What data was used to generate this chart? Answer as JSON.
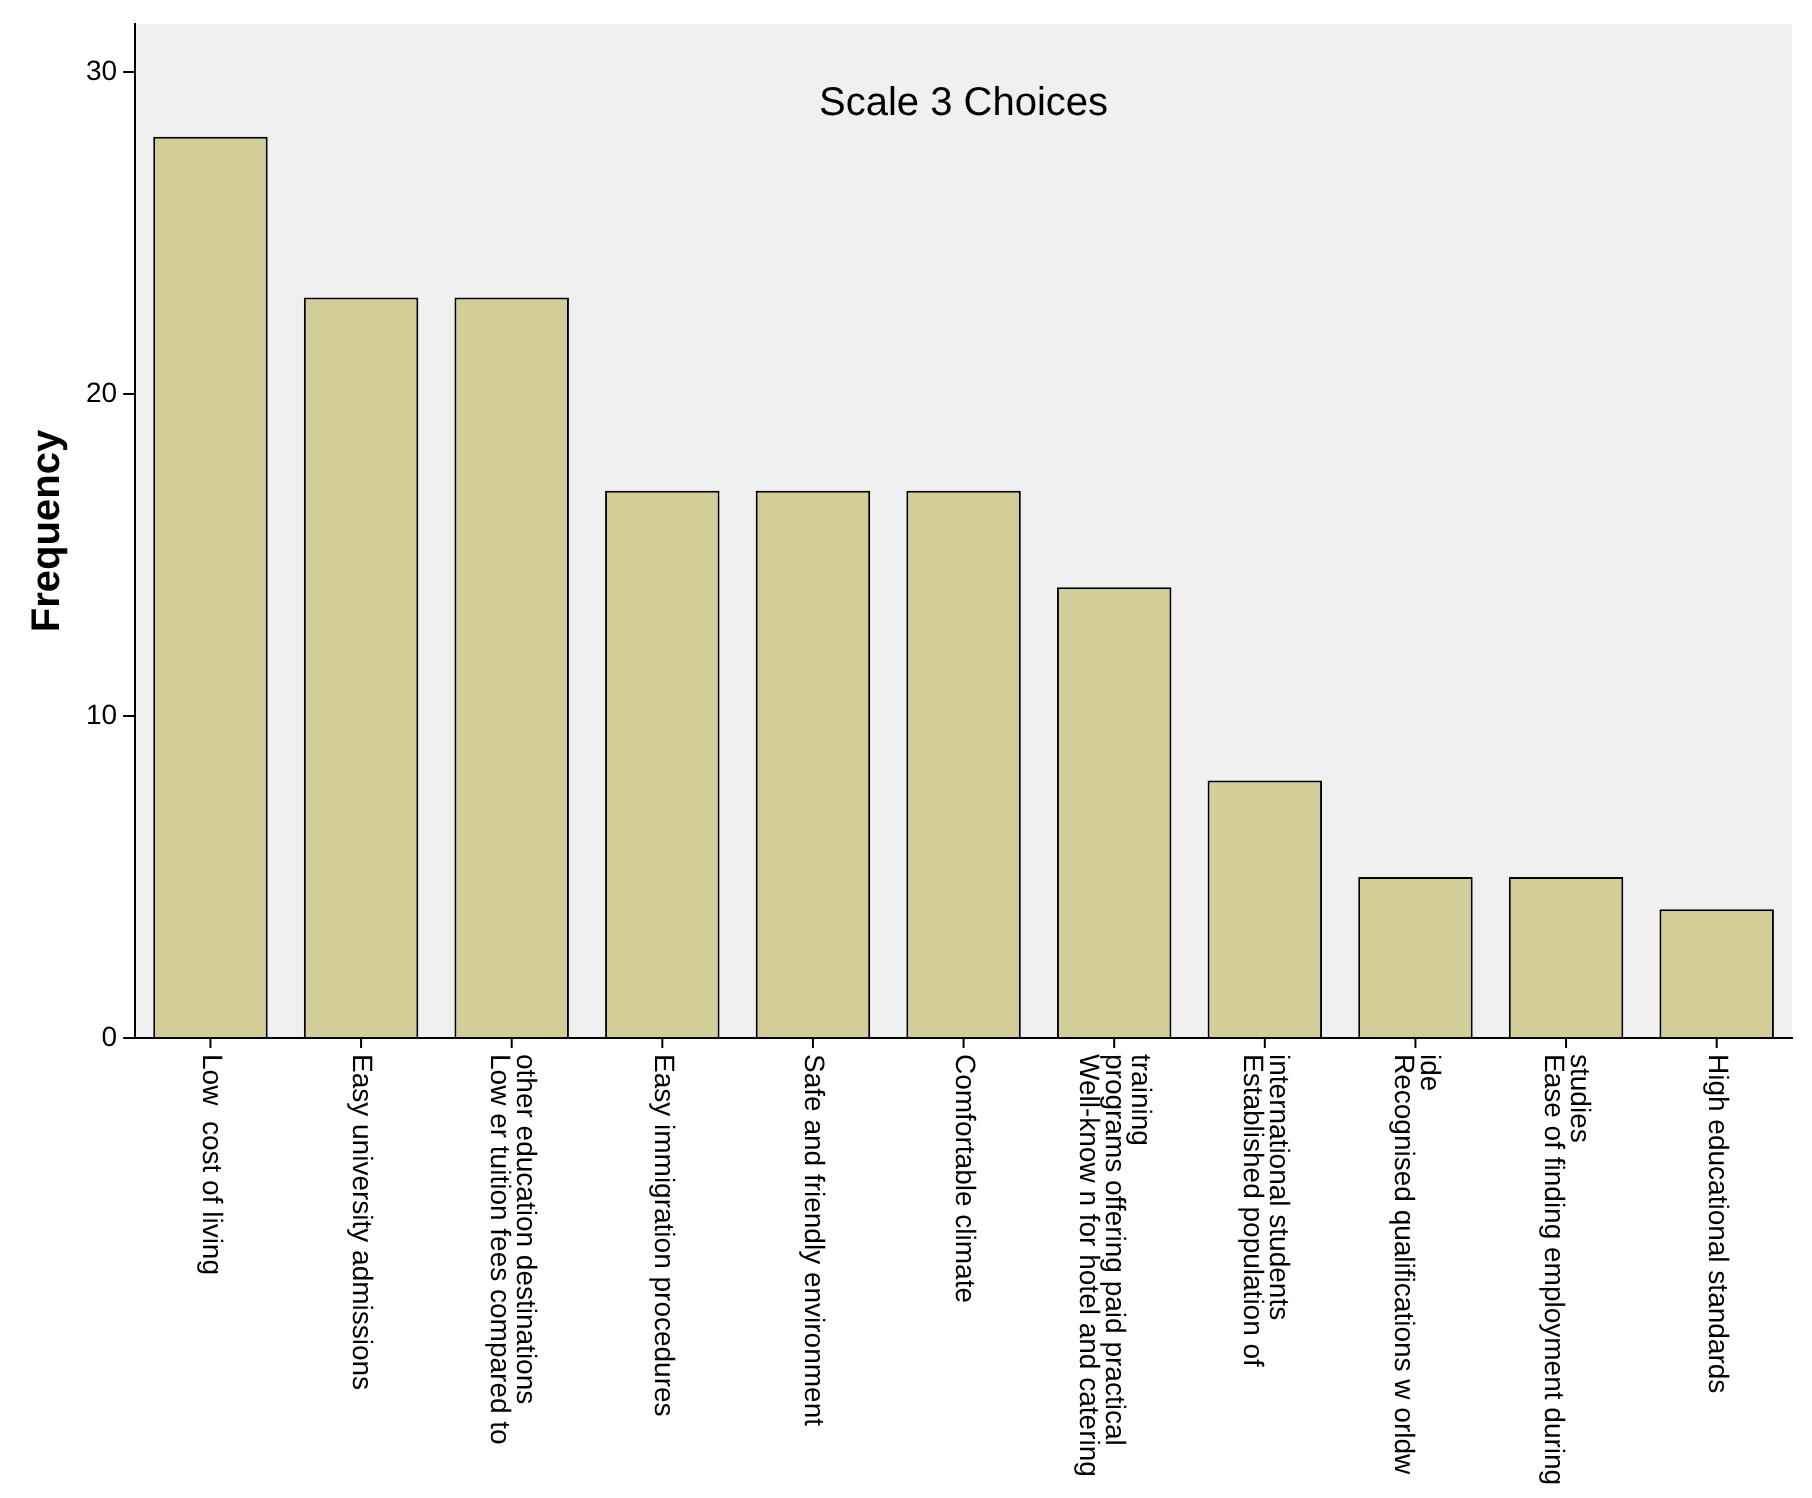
{
  "chart_data": {
    "type": "bar",
    "title": "Scale 3 Choices",
    "ylabel": "Frequency",
    "categories": [
      "Low  cost of living",
      "Easy university admissions",
      "Low er tuition fees compared to other education destinations",
      "Easy immigration procedures",
      "Safe and friendly environment",
      "Comfortable climate",
      "Well-know n for hotel and catering programs offering paid practical training",
      "Established population of international students",
      "Recognised qualifications w orldw ide",
      "Ease of finding employment during studies",
      "High educational standards"
    ],
    "values": [
      28,
      23,
      23,
      17,
      17,
      17,
      14,
      8,
      5,
      5,
      4
    ],
    "color": "#d3ce97",
    "ylim": [
      0,
      31.5
    ],
    "yticks": [
      0,
      10,
      20,
      30
    ],
    "grid": false,
    "legend": false
  }
}
